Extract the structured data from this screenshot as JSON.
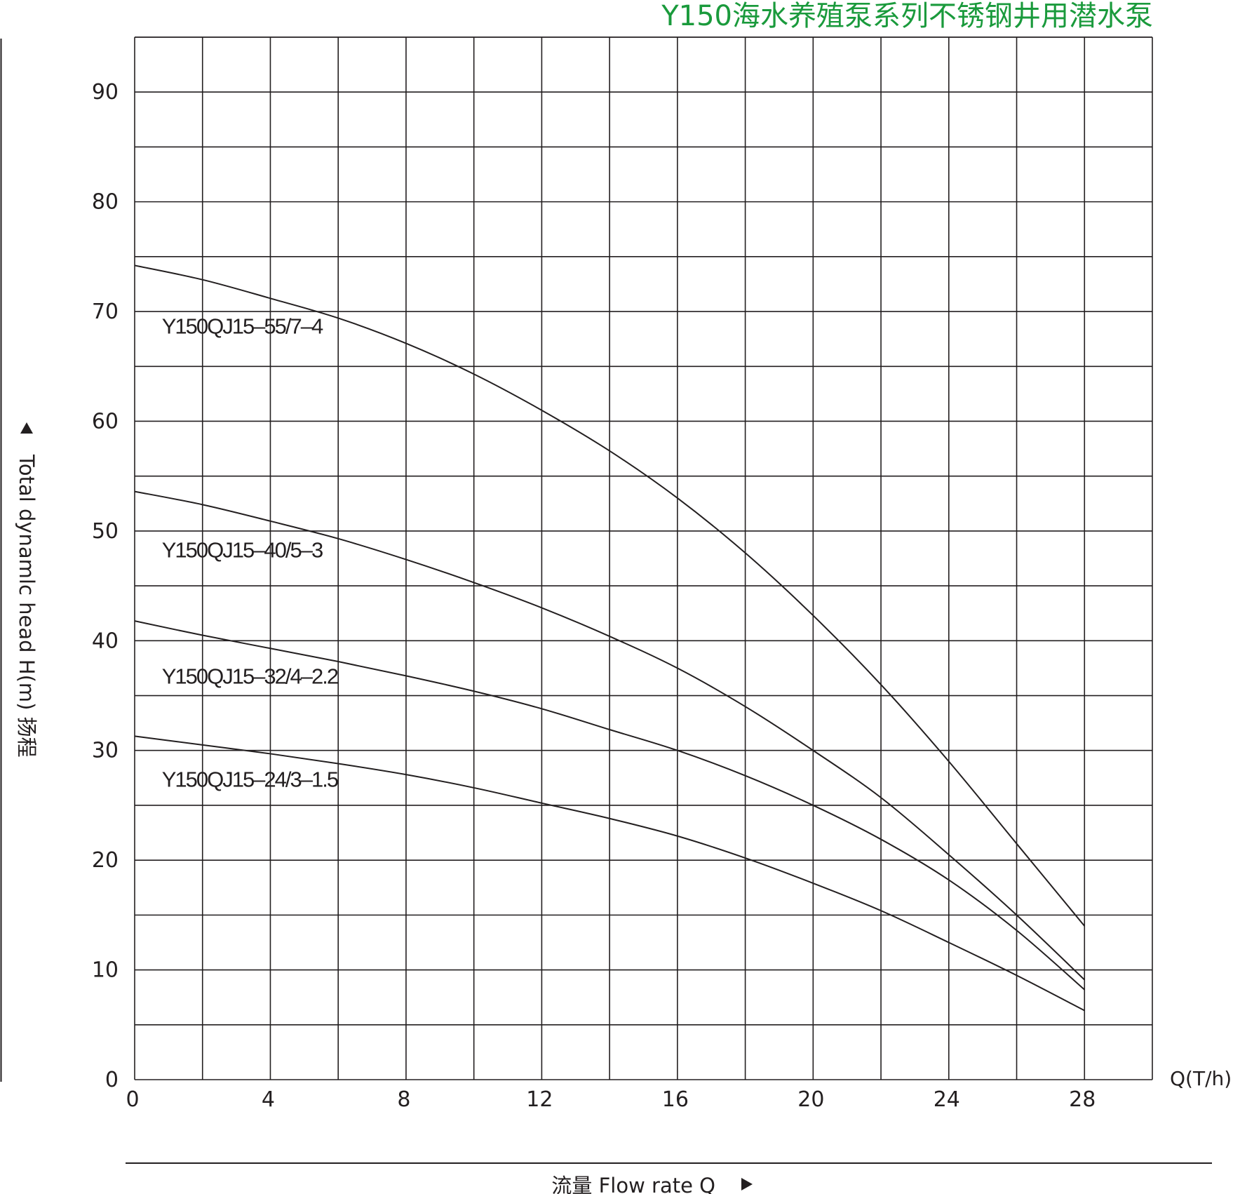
{
  "chart_data": {
    "type": "line",
    "title": "Y150海水养殖泵系列不锈钢井用潜水泵",
    "xlabel": "流量  Flow rate Q",
    "ylabel": "Total dynamlc head H(m) 扬程",
    "x_unit": "Q(T/h)",
    "xlim": [
      0,
      30
    ],
    "ylim": [
      0,
      95
    ],
    "x_ticks": [
      0,
      4,
      8,
      12,
      16,
      20,
      24,
      28
    ],
    "y_ticks": [
      0,
      10,
      20,
      30,
      40,
      50,
      60,
      70,
      80,
      90
    ],
    "grid": true,
    "x": [
      0,
      2,
      4,
      6,
      8,
      10,
      12,
      14,
      16,
      18,
      20,
      22,
      24,
      26,
      28
    ],
    "series": [
      {
        "name": "Y150QJ15–55/7–4",
        "values": [
          74.2,
          72.9,
          71.2,
          69.4,
          67.1,
          64.3,
          61.0,
          57.3,
          53.0,
          48.0,
          42.3,
          36.0,
          29.0,
          21.5,
          14.0
        ],
        "label_at": [
          0.8,
          68
        ]
      },
      {
        "name": "Y150QJ15–40/5–3",
        "values": [
          53.6,
          52.4,
          50.9,
          49.3,
          47.4,
          45.3,
          43.0,
          40.4,
          37.5,
          34.0,
          30.0,
          25.7,
          20.5,
          15.0,
          9.1
        ],
        "label_at": [
          0.8,
          47.6
        ]
      },
      {
        "name": "Y150QJ15–32/4–2.2",
        "values": [
          41.8,
          40.5,
          39.3,
          38.1,
          36.8,
          35.4,
          33.8,
          31.9,
          30.0,
          27.7,
          25.0,
          21.9,
          18.2,
          13.6,
          8.2
        ],
        "label_at": [
          0.8,
          36.1
        ]
      },
      {
        "name": "Y150QJ15–24/3–1.5",
        "values": [
          31.3,
          30.5,
          29.7,
          28.8,
          27.8,
          26.6,
          25.2,
          23.8,
          22.2,
          20.2,
          17.9,
          15.4,
          12.5,
          9.5,
          6.3
        ],
        "label_at": [
          0.8,
          26.7
        ]
      }
    ]
  }
}
